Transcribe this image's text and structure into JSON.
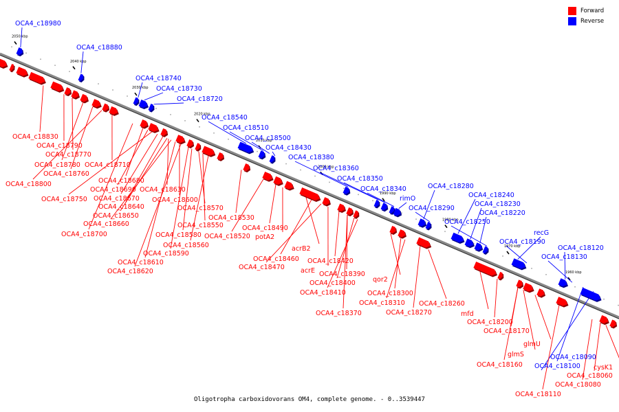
{
  "legend": {
    "forward_label": "Forward",
    "reverse_label": "Reverse",
    "forward_color": "#ff0000",
    "reverse_color": "#0000ff"
  },
  "caption": "Oligotropha carboxidovorans OM4, complete genome. - 0..3539447",
  "colors": {
    "forward": "#ff0000",
    "reverse": "#0000ff",
    "backbone": "#888888",
    "link_forward": "#ff0000",
    "link_reverse": "#0000ff"
  },
  "kbp_marks": [
    "2050 kbp",
    "2040 kbp",
    "2030 kbp",
    "2020 kbp",
    "2010 kbp",
    "2000 kbp",
    "1990 kbp",
    "1980 kbp",
    "1970 kbp",
    "1960 kbp"
  ],
  "genes": [
    {
      "label": "OCA4_c18980",
      "strand": "reverse"
    },
    {
      "label": "OCA4_c18880",
      "strand": "reverse"
    },
    {
      "label": "OCA4_c18740",
      "strand": "reverse"
    },
    {
      "label": "OCA4_c18730",
      "strand": "reverse"
    },
    {
      "label": "OCA4_c18720",
      "strand": "reverse"
    },
    {
      "label": "OCA4_c18540",
      "strand": "reverse"
    },
    {
      "label": "OCA4_c18510",
      "strand": "reverse"
    },
    {
      "label": "OCA4_c18500",
      "strand": "reverse"
    },
    {
      "label": "OCA4_c18430",
      "strand": "reverse"
    },
    {
      "label": "OCA4_c18380",
      "strand": "reverse"
    },
    {
      "label": "OCA4_c18360",
      "strand": "reverse"
    },
    {
      "label": "OCA4_c18350",
      "strand": "reverse"
    },
    {
      "label": "OCA4_c18340",
      "strand": "reverse"
    },
    {
      "label": "rimO",
      "strand": "reverse"
    },
    {
      "label": "OCA4_c18280",
      "strand": "reverse"
    },
    {
      "label": "OCA4_c18290",
      "strand": "reverse"
    },
    {
      "label": "OCA4_c18240",
      "strand": "reverse"
    },
    {
      "label": "OCA4_c18230",
      "strand": "reverse"
    },
    {
      "label": "OCA4_c18220",
      "strand": "reverse"
    },
    {
      "label": "OCA4_c18250",
      "strand": "reverse"
    },
    {
      "label": "recG",
      "strand": "reverse"
    },
    {
      "label": "OCA4_c18190",
      "strand": "reverse"
    },
    {
      "label": "OCA4_c18120",
      "strand": "reverse"
    },
    {
      "label": "OCA4_c18130",
      "strand": "reverse"
    },
    {
      "label": "OCA4_c18090",
      "strand": "reverse"
    },
    {
      "label": "OCA4_c18100",
      "strand": "reverse"
    },
    {
      "label": "OCA4_c18830",
      "strand": "forward"
    },
    {
      "label": "OCA4_c18790",
      "strand": "forward"
    },
    {
      "label": "OCA4_c18770",
      "strand": "forward"
    },
    {
      "label": "OCA4_c18780",
      "strand": "forward"
    },
    {
      "label": "OCA4_c18710",
      "strand": "forward"
    },
    {
      "label": "OCA4_c18760",
      "strand": "forward"
    },
    {
      "label": "OCA4_c18800",
      "strand": "forward"
    },
    {
      "label": "OCA4_c18680",
      "strand": "forward"
    },
    {
      "label": "OCA4_c18690",
      "strand": "forward"
    },
    {
      "label": "OCA4_c18630",
      "strand": "forward"
    },
    {
      "label": "OCA4_c18750",
      "strand": "forward"
    },
    {
      "label": "OCA4_c18670",
      "strand": "forward"
    },
    {
      "label": "OCA4_c18600",
      "strand": "forward"
    },
    {
      "label": "OCA4_c18640",
      "strand": "forward"
    },
    {
      "label": "OCA4_c18570",
      "strand": "forward"
    },
    {
      "label": "OCA4_c18650",
      "strand": "forward"
    },
    {
      "label": "OCA4_c18530",
      "strand": "forward"
    },
    {
      "label": "OCA4_c18660",
      "strand": "forward"
    },
    {
      "label": "OCA4_c18550",
      "strand": "forward"
    },
    {
      "label": "OCA4_c18700",
      "strand": "forward"
    },
    {
      "label": "OCA4_c18490",
      "strand": "forward"
    },
    {
      "label": "OCA4_c18580",
      "strand": "forward"
    },
    {
      "label": "OCA4_c18520",
      "strand": "forward"
    },
    {
      "label": "potA2",
      "strand": "forward"
    },
    {
      "label": "OCA4_c18560",
      "strand": "forward"
    },
    {
      "label": "acrB2",
      "strand": "forward"
    },
    {
      "label": "OCA4_c18590",
      "strand": "forward"
    },
    {
      "label": "OCA4_c18460",
      "strand": "forward"
    },
    {
      "label": "OCA4_c18420",
      "strand": "forward"
    },
    {
      "label": "OCA4_c18610",
      "strand": "forward"
    },
    {
      "label": "OCA4_c18470",
      "strand": "forward"
    },
    {
      "label": "acrE",
      "strand": "forward"
    },
    {
      "label": "OCA4_c18390",
      "strand": "forward"
    },
    {
      "label": "OCA4_c18620",
      "strand": "forward"
    },
    {
      "label": "OCA4_c18400",
      "strand": "forward"
    },
    {
      "label": "qor2",
      "strand": "forward"
    },
    {
      "label": "OCA4_c18410",
      "strand": "forward"
    },
    {
      "label": "OCA4_c18300",
      "strand": "forward"
    },
    {
      "label": "OCA4_c18310",
      "strand": "forward"
    },
    {
      "label": "OCA4_c18260",
      "strand": "forward"
    },
    {
      "label": "OCA4_c18370",
      "strand": "forward"
    },
    {
      "label": "OCA4_c18270",
      "strand": "forward"
    },
    {
      "label": "mfd",
      "strand": "forward"
    },
    {
      "label": "OCA4_c18200",
      "strand": "forward"
    },
    {
      "label": "OCA4_c18170",
      "strand": "forward"
    },
    {
      "label": "glmU",
      "strand": "forward"
    },
    {
      "label": "glmS",
      "strand": "forward"
    },
    {
      "label": "OCA4_c18160",
      "strand": "forward"
    },
    {
      "label": "cysK1",
      "strand": "forward"
    },
    {
      "label": "OCA4_c18060",
      "strand": "forward"
    },
    {
      "label": "OCA4_c18080",
      "strand": "forward"
    },
    {
      "label": "OCA4_c18110",
      "strand": "forward"
    }
  ]
}
